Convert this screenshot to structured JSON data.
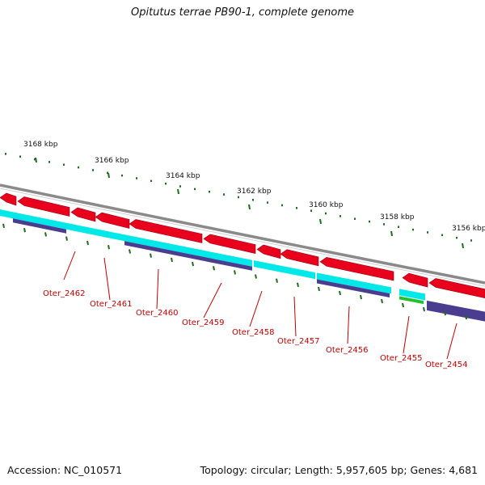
{
  "title": "Opitutus terrae PB90-1, complete genome",
  "footer": {
    "accession": "Accession: NC_010571",
    "summary": "Topology: circular; Length: 5,957,605 bp; Genes: 4,681"
  },
  "colors": {
    "backbone": "#8a8a8a",
    "forward_gene": "#e8001c",
    "cds": "#00e8e8",
    "rna": "#4a3d8f",
    "green_feature": "#22c02a",
    "tick": "#1f6b1f",
    "label": "#c00000"
  },
  "scale": {
    "ticks_kbp": [
      {
        "label": "3168 kbp"
      },
      {
        "label": "3166 kbp"
      },
      {
        "label": "3164 kbp"
      },
      {
        "label": "3162 kbp"
      },
      {
        "label": "3160 kbp"
      },
      {
        "label": "3158 kbp"
      },
      {
        "label": "3156 kbp"
      }
    ]
  },
  "genes": [
    {
      "label": "Oter_2462"
    },
    {
      "label": "Oter_2461"
    },
    {
      "label": "Oter_2460"
    },
    {
      "label": "Oter_2459"
    },
    {
      "label": "Oter_2458"
    },
    {
      "label": "Oter_2457"
    },
    {
      "label": "Oter_2456"
    },
    {
      "label": "Oter_2455"
    },
    {
      "label": "Oter_2454"
    }
  ]
}
